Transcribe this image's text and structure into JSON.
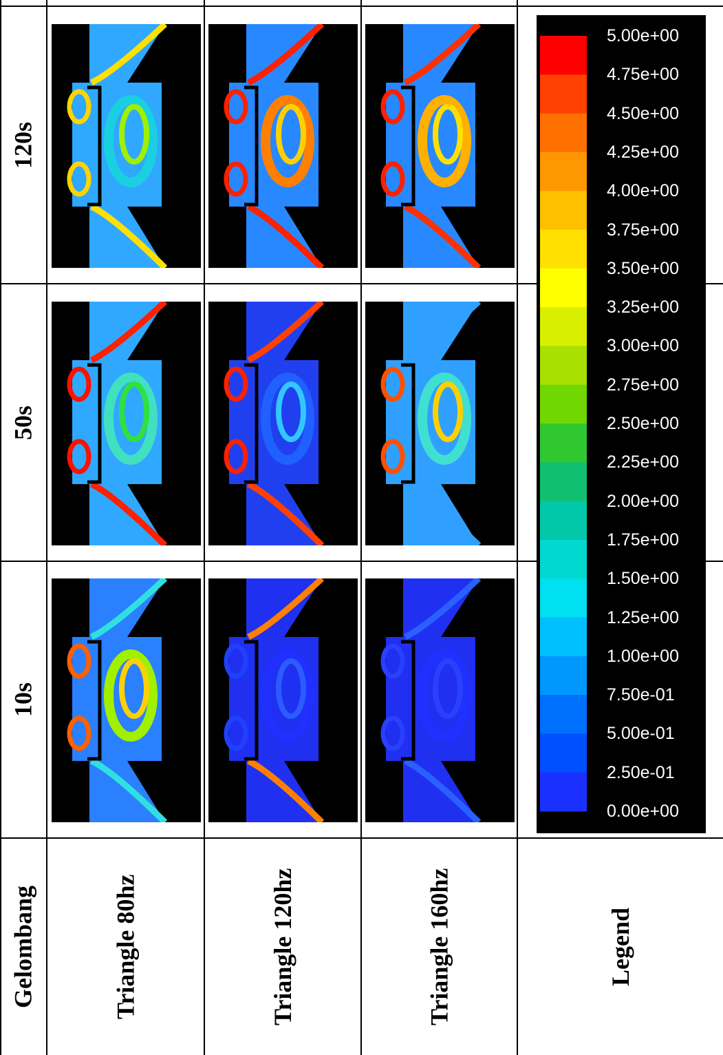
{
  "table": {
    "row_labels": [
      "120s",
      "50s",
      "10s"
    ],
    "column_labels": [
      "Gelombang",
      "Triangle 80hz",
      "Triangle 120hz",
      "Triangle 160hz",
      "Legend"
    ],
    "legend_labels": [
      "5.00e+00",
      "4.75e+00",
      "4.50e+00",
      "4.25e+00",
      "4.00e+00",
      "3.75e+00",
      "3.50e+00",
      "3.25e+00",
      "3.00e+00",
      "2.75e+00",
      "2.50e+00",
      "2.25e+00",
      "2.00e+00",
      "1.75e+00",
      "1.50e+00",
      "1.25e+00",
      "1.00e+00",
      "7.50e-01",
      "5.00e-01",
      "2.50e-01",
      "0.00e+00"
    ]
  }
}
